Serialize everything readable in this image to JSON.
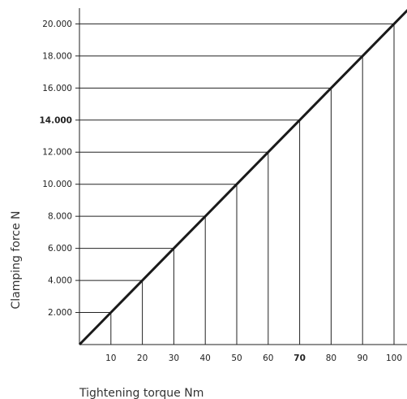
{
  "chart_data": {
    "type": "line",
    "xlabel": "Tightening torque Nm",
    "ylabel": "Clamping force N",
    "xlim": [
      0,
      105
    ],
    "ylim": [
      0,
      21000
    ],
    "x_ticks": [
      {
        "value": 10,
        "label": "10",
        "bold": false
      },
      {
        "value": 20,
        "label": "20",
        "bold": false
      },
      {
        "value": 30,
        "label": "30",
        "bold": false
      },
      {
        "value": 40,
        "label": "40",
        "bold": false
      },
      {
        "value": 50,
        "label": "50",
        "bold": false
      },
      {
        "value": 60,
        "label": "60",
        "bold": false
      },
      {
        "value": 70,
        "label": "70",
        "bold": true
      },
      {
        "value": 80,
        "label": "80",
        "bold": false
      },
      {
        "value": 90,
        "label": "90",
        "bold": false
      },
      {
        "value": 100,
        "label": "100",
        "bold": false
      }
    ],
    "y_ticks": [
      {
        "value": 2000,
        "label": "2.000",
        "bold": false
      },
      {
        "value": 4000,
        "label": "4.000",
        "bold": false
      },
      {
        "value": 6000,
        "label": "6.000",
        "bold": false
      },
      {
        "value": 8000,
        "label": "8.000",
        "bold": false
      },
      {
        "value": 10000,
        "label": "10.000",
        "bold": false
      },
      {
        "value": 12000,
        "label": "12.000",
        "bold": false
      },
      {
        "value": 14000,
        "label": "14.000",
        "bold": true
      },
      {
        "value": 16000,
        "label": "16.000",
        "bold": false
      },
      {
        "value": 18000,
        "label": "18.000",
        "bold": false
      },
      {
        "value": 20000,
        "label": "20.000",
        "bold": false
      }
    ],
    "series": [
      {
        "x": [
          0,
          10,
          20,
          30,
          40,
          50,
          60,
          70,
          80,
          90,
          100,
          105
        ],
        "y": [
          0,
          2000,
          4000,
          6000,
          8000,
          10000,
          12000,
          14000,
          16000,
          18000,
          20000,
          21000
        ]
      }
    ],
    "colors": {
      "line": "#1a1a1a",
      "grid": "#222222",
      "axis": "#222222"
    }
  }
}
